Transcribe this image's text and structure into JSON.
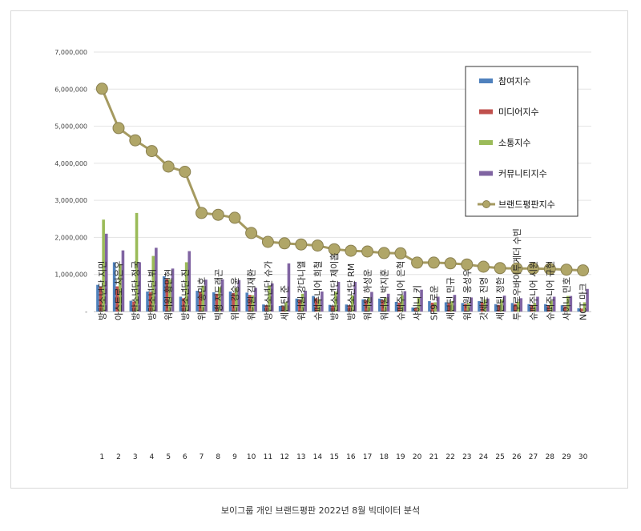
{
  "caption": "보이그룹 개인 브랜드평판  2022년 8월 빅데이터 분석",
  "chart_data": {
    "type": "bar",
    "title": "",
    "xlabel": "",
    "ylabel": "",
    "ylim": [
      0,
      7000000
    ],
    "yticks": [
      "-",
      "1,000,000",
      "2,000,000",
      "3,000,000",
      "4,000,000",
      "5,000,000",
      "6,000,000",
      "7,000,000"
    ],
    "grid": true,
    "legend_position": "right",
    "ranks": [
      "1",
      "2",
      "3",
      "4",
      "5",
      "6",
      "7",
      "8",
      "9",
      "10",
      "11",
      "12",
      "13",
      "14",
      "15",
      "16",
      "17",
      "18",
      "19",
      "20",
      "21",
      "22",
      "23",
      "24",
      "25",
      "26",
      "27",
      "28",
      "29",
      "30"
    ],
    "categories": [
      "방탄소년단 지민",
      "아스트로 차은우",
      "방탄소년단 정국",
      "방탄소년단 뷔",
      "워너원 황민현",
      "방탄소년단 진",
      "위너 송민호",
      "빅뱅 지드래곤",
      "위너 강승윤",
      "워너원 김재환",
      "방탄소년단 슈가",
      "세븐틴 준",
      "워너원 강다니엘",
      "슈퍼주니어 희철",
      "방탄소년단 제이홉",
      "방탄소년단 RM",
      "워너원 하성운",
      "워너원 박지훈",
      "슈퍼주니어 은혁",
      "샤이니 키",
      "SF9 로운",
      "세븐틴 민규",
      "워너원 옹성우",
      "갓세븐 진영",
      "세븐틴 정한",
      "투모로우바이투게더 수빈",
      "슈퍼주니어 시원",
      "슈퍼주니어 규현",
      "샤이니 민호",
      "NCT 마크"
    ],
    "series": [
      {
        "name": "참여지수",
        "color": "#4f81bd",
        "kind": "bar",
        "values": [
          720000,
          1330000,
          290000,
          540000,
          950000,
          400000,
          560000,
          520000,
          540000,
          510000,
          190000,
          150000,
          350000,
          420000,
          180000,
          190000,
          330000,
          350000,
          260000,
          110000,
          280000,
          250000,
          230000,
          280000,
          200000,
          230000,
          200000,
          200000,
          170000,
          90000
        ]
      },
      {
        "name": "미디어지수",
        "color": "#c0504d",
        "kind": "bar",
        "values": [
          680000,
          680000,
          270000,
          520000,
          880000,
          360000,
          540000,
          480000,
          500000,
          450000,
          170000,
          140000,
          320000,
          360000,
          160000,
          170000,
          300000,
          310000,
          240000,
          100000,
          240000,
          220000,
          210000,
          240000,
          180000,
          210000,
          180000,
          170000,
          140000,
          80000
        ]
      },
      {
        "name": "소통지수",
        "color": "#9bbb59",
        "kind": "bar",
        "values": [
          2480000,
          1280000,
          2660000,
          1500000,
          870000,
          1330000,
          700000,
          660000,
          630000,
          440000,
          700000,
          250000,
          480000,
          330000,
          540000,
          440000,
          380000,
          370000,
          440000,
          390000,
          250000,
          280000,
          230000,
          330000,
          330000,
          270000,
          230000,
          290000,
          420000,
          250000
        ]
      },
      {
        "name": "커뮤니티지수",
        "color": "#8064a2",
        "kind": "bar",
        "values": [
          2100000,
          1650000,
          1330000,
          1720000,
          1160000,
          1630000,
          860000,
          870000,
          850000,
          640000,
          760000,
          1300000,
          560000,
          540000,
          800000,
          800000,
          530000,
          480000,
          550000,
          590000,
          400000,
          450000,
          380000,
          350000,
          430000,
          360000,
          400000,
          400000,
          420000,
          610000
        ]
      },
      {
        "name": "브랜드평판지수",
        "color": "#a59a60",
        "kind": "line",
        "values": [
          6010000,
          4950000,
          4620000,
          4330000,
          3910000,
          3770000,
          2660000,
          2610000,
          2530000,
          2120000,
          1880000,
          1840000,
          1810000,
          1780000,
          1680000,
          1640000,
          1620000,
          1580000,
          1570000,
          1320000,
          1320000,
          1300000,
          1270000,
          1210000,
          1170000,
          1160000,
          1160000,
          1150000,
          1130000,
          1110000
        ]
      }
    ]
  }
}
